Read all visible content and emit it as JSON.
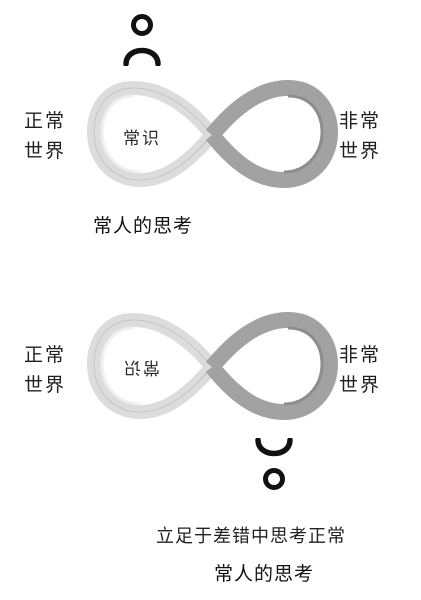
{
  "top": {
    "left_label": [
      "正常",
      "世界"
    ],
    "right_label": [
      "非常",
      "世界"
    ],
    "loop_text": "常识",
    "caption": "常人的思考"
  },
  "bottom": {
    "left_label": [
      "正常",
      "世界"
    ],
    "right_label": [
      "非常",
      "世界"
    ],
    "loop_text": "常识",
    "caption_line1": "立足于差错中思考正常",
    "caption_line2": "常人的思考"
  },
  "colors": {
    "ribbon_light": "#d9d9d9",
    "ribbon_dark": "#9e9e9e",
    "figure": "#111111"
  }
}
